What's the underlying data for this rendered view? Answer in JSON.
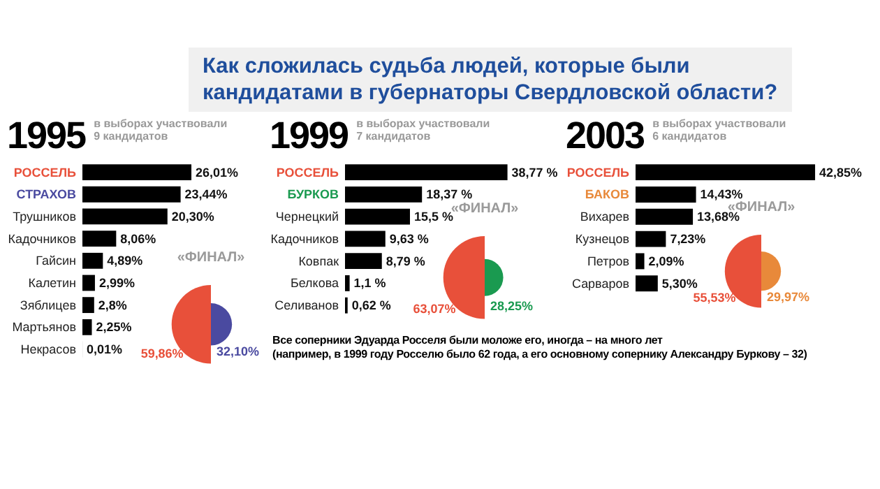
{
  "chart_data": [
    {
      "type": "other",
      "title": "Как сложилась судьба людей, которые были\nкандидатами в губернаторы Свердловской области?"
    },
    {
      "type": "bar",
      "orientation": "horizontal",
      "title": "1995",
      "subtitle": "в выборах участвовали\n9  кандидатов",
      "categories": [
        "РОССЕЛЬ",
        "СТРАХОВ",
        "Трушников",
        "Кадочников",
        "Гайсин",
        "Калетин",
        "Зяблицев",
        "Мартьянов",
        "Некрасов"
      ],
      "values": [
        26.01,
        23.44,
        20.3,
        8.06,
        4.89,
        2.99,
        2.8,
        2.25,
        0.01
      ],
      "color": "#000000",
      "value_labels": [
        "26,01%",
        "23,44%",
        "20,30%",
        "8,06%",
        "4,89%",
        "2,99%",
        "2,8%",
        "2,25%",
        "0,01%"
      ]
    },
    {
      "type": "other",
      "title": "«ФИНАЛ»",
      "categories": [
        null,
        null
      ],
      "values": [
        59.86,
        32.1
      ],
      "colors": [
        "#e8503a",
        "#4a4aa0"
      ],
      "value_labels": [
        "59,86%",
        "32,10%"
      ]
    },
    {
      "type": "bar",
      "orientation": "horizontal",
      "title": "1999",
      "subtitle": "в выборах участвовали\n7  кандидатов",
      "categories": [
        "РОССЕЛЬ",
        "БУРКОВ",
        "Чернецкий",
        "Кадочников",
        "Ковпак",
        "Белкова",
        "Селиванов"
      ],
      "values": [
        38.77,
        18.37,
        15.5,
        9.63,
        8.79,
        1.1,
        0.62
      ],
      "color": "#000000",
      "value_labels": [
        "38,77 %",
        "18,37 %",
        "15,5 %",
        "9,63 %",
        "8,79 %",
        "1,1 %",
        "0,62 %"
      ],
      "annotations": [
        "Все соперники Эдуарда Росселя были моложе его, иногда – на много лет\n(например, в 1999 году Росселю было 62 года, а его основному сопернику Александру Буркову – 32)"
      ]
    },
    {
      "type": "other",
      "title": "«ФИНАЛ»",
      "categories": [
        null,
        null
      ],
      "values": [
        63.07,
        28.25
      ],
      "colors": [
        "#e8503a",
        "#1a9a50"
      ],
      "value_labels": [
        "63,07%",
        "28,25%"
      ]
    },
    {
      "type": "bar",
      "orientation": "horizontal",
      "title": "2003",
      "subtitle": "в выборах участвовали\n6  кандидатов",
      "categories": [
        "РОССЕЛЬ",
        "БАКОВ",
        "Вихарев",
        "Кузнецов",
        "Петров",
        "Сарваров"
      ],
      "values": [
        42.85,
        14.43,
        13.68,
        7.23,
        2.09,
        5.3
      ],
      "color": "#000000",
      "value_labels": [
        "42,85%",
        "14,43%",
        "13,68%",
        "7,23%",
        "2,09%",
        "5,30%"
      ]
    },
    {
      "type": "other",
      "title": "«ФИНАЛ»",
      "categories": [
        null,
        null
      ],
      "values": [
        55.53,
        29.97
      ],
      "colors": [
        "#e8503a",
        "#e8893a"
      ],
      "value_labels": [
        "55,53%",
        "29,97%"
      ]
    }
  ]
}
